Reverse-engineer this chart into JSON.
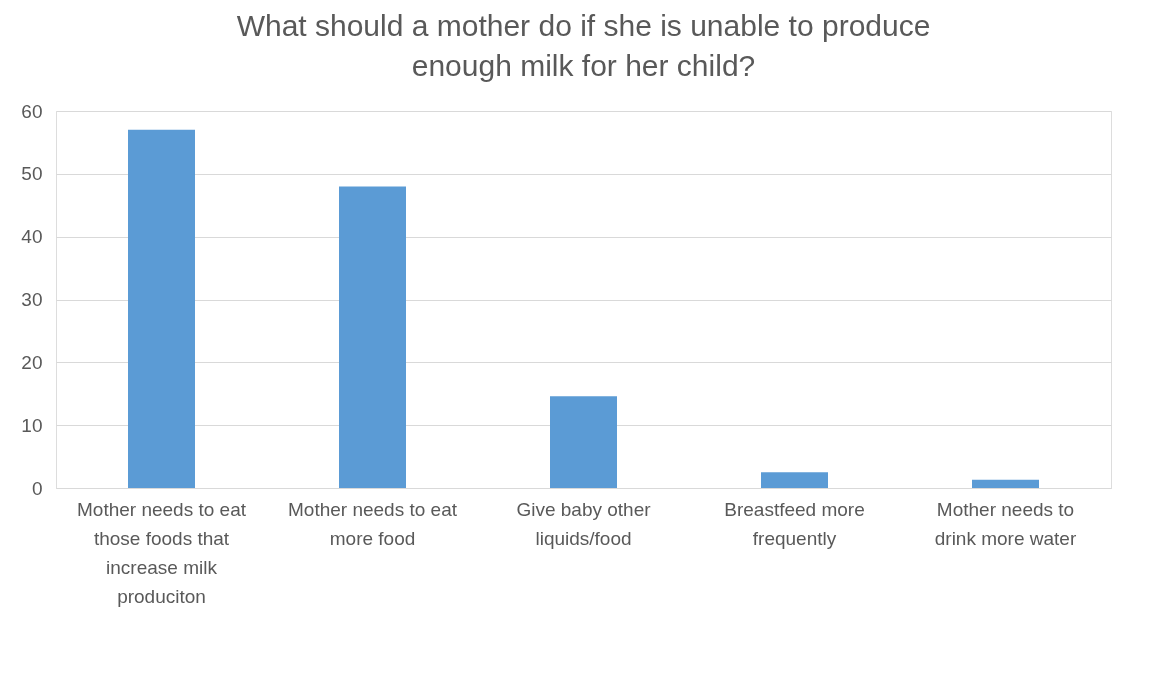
{
  "chart_data": {
    "type": "bar",
    "title": "What should a mother do if she is unable to produce enough milk for her child?",
    "categories": [
      "Mother needs to eat those foods that increase milk produciton",
      "Mother needs to eat more food",
      "Give baby other liquids/food",
      "Breastfeed more frequently",
      "Mother needs to drink more water"
    ],
    "values": [
      57,
      48,
      14.6,
      2.5,
      1.3
    ],
    "color": "#5b9bd5",
    "ylim": [
      0,
      60
    ],
    "yticks": [
      0,
      10,
      20,
      30,
      40,
      50,
      60
    ],
    "grid": "y"
  }
}
